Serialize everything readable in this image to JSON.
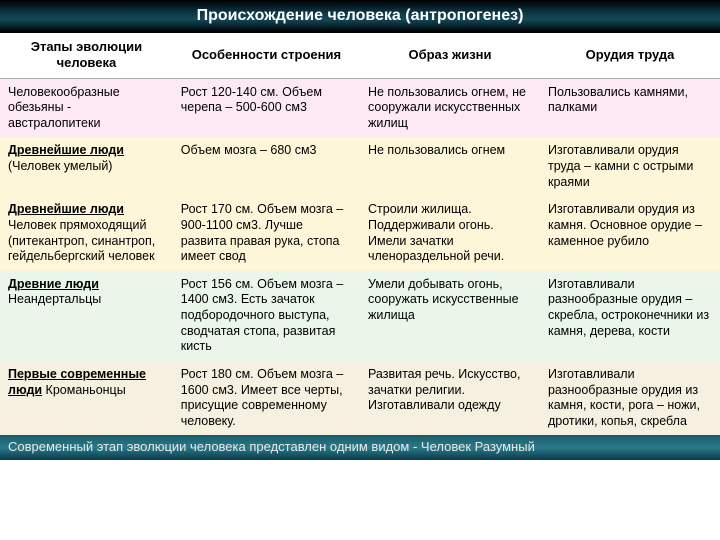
{
  "title": "Происхождение человека (антропогенез)",
  "headers": [
    "Этапы эволюции человека",
    "Особенности строения",
    "Образ жизни",
    "Орудия труда"
  ],
  "rows": [
    {
      "stage_html": "Человекообразные обезьяны - австралопитеки",
      "features": "Рост 120-140 см. Объем черепа – 500-600 см3",
      "lifestyle": "Не пользовались огнем, не сооружали искусственных жилищ",
      "tools": "Пользовались камнями, палками"
    },
    {
      "stage_html": "<span class='u'>Древнейшие люди</span> (Человек умелый)",
      "features": "Объем мозга – 680 см3",
      "lifestyle": "Не пользовались огнем",
      "tools": "Изготавливали орудия труда – камни с острыми краями"
    },
    {
      "stage_html": "<span class='u'>Древнейшие люди</span> Человек прямоходящий (питекантроп, синантроп, гейдельбергский человек",
      "features": "Рост 170 см. Объем мозга – 900-1100 см3. Лучше развита правая рука, стопа имеет свод",
      "lifestyle": "Строили жилища. Поддерживали огонь. Имели зачатки членораздельной речи.",
      "tools": "Изготавливали орудия из камня. Основное орудие – каменное рубило"
    },
    {
      "stage_html": "<span class='u'>Древние люди</span> Неандертальцы",
      "features": "Рост 156 см. Объем мозга –1400 см3. Есть зачаток подбородочного выступа, сводчатая стопа, развитая кисть",
      "lifestyle": "Умели добывать огонь, сооружать искусственные жилища",
      "tools": "Изготавливали разнообразные орудия – скребла, остроконечники из камня, дерева, кости"
    },
    {
      "stage_html": "<span class='u b'>Первые современные люди</span> Кроманьонцы",
      "features": "Рост 180 см. Объем мозга –1600 см3. Имеет все черты, присущие современному человеку.",
      "lifestyle": "Развитая речь. Искусство, зачатки религии. Изготавливали одежду",
      "tools": "Изготавливали разнообразные орудия из камня, кости, рога – ножи, дротики, копья, скребла"
    }
  ],
  "footer": "Современный этап эволюции человека представлен одним видом - Человек Разумный",
  "colors": {
    "row0": "#fce9f3",
    "row1": "#fef6d9",
    "row2": "#fef6d9",
    "row3": "#eaf6ea",
    "row4": "#f6f0e0"
  }
}
